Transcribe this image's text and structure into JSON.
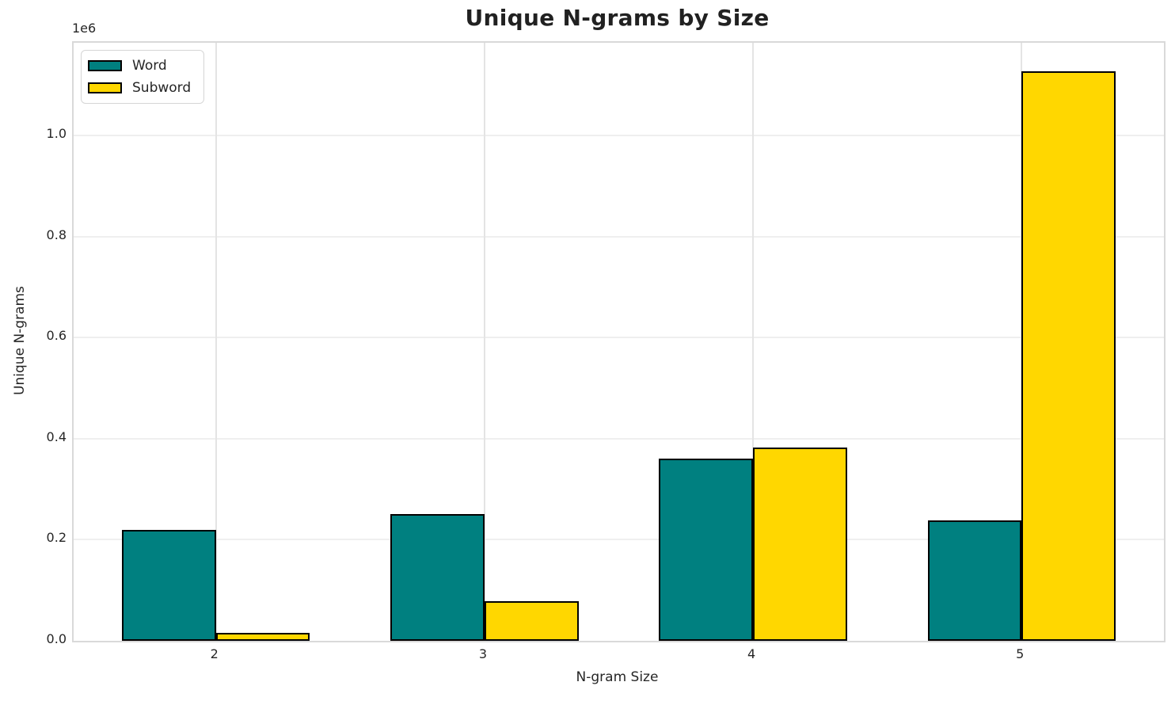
{
  "chart_data": {
    "type": "bar",
    "title": "Unique N-grams by Size",
    "xlabel": "N-gram Size",
    "ylabel": "Unique N-grams",
    "offset_text": "1e6",
    "categories": [
      "2",
      "3",
      "4",
      "5"
    ],
    "series": [
      {
        "name": "Word",
        "color": "#008080",
        "values": [
          220000,
          251000,
          360000,
          238000
        ]
      },
      {
        "name": "Subword",
        "color": "#FFD700",
        "values": [
          15000,
          78000,
          383000,
          1128000
        ]
      }
    ],
    "yticks": [
      0,
      0.2,
      0.4,
      0.6,
      0.8,
      1.0
    ],
    "ytick_scale": 1000000,
    "ylim": [
      0,
      1184000
    ],
    "xlim": [
      -0.53,
      3.53
    ],
    "bar_width": 0.35,
    "grid": true,
    "legend_position": "upper left",
    "bar_edge_color": "#000000",
    "background_color": "#ffffff",
    "text_color": "#262626"
  }
}
